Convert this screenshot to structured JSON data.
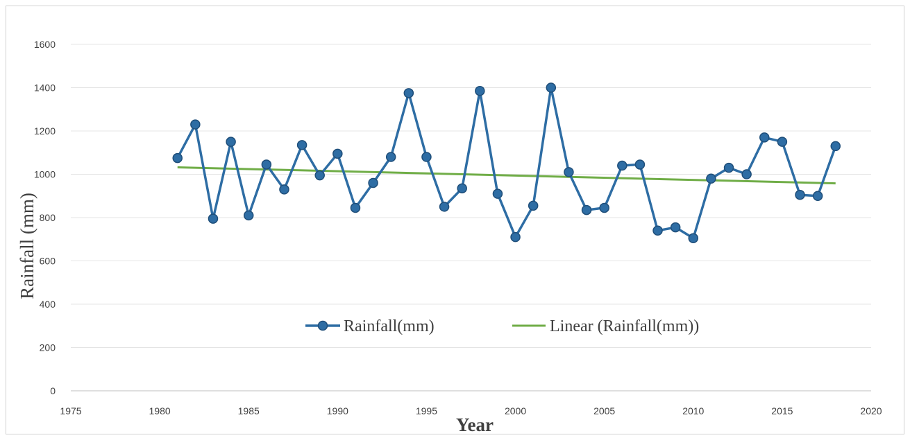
{
  "chart_data": {
    "type": "line",
    "title": "",
    "xlabel": "Year",
    "ylabel": "Rainfall (mm)",
    "xlim": [
      1975,
      2020
    ],
    "ylim": [
      0,
      1600
    ],
    "xticks": [
      1975,
      1980,
      1985,
      1990,
      1995,
      2000,
      2005,
      2010,
      2015,
      2020
    ],
    "yticks": [
      0,
      200,
      400,
      600,
      800,
      1000,
      1200,
      1400,
      1600
    ],
    "grid": "horizontal",
    "legend_position": "center",
    "series": [
      {
        "name": "Rainfall(mm)",
        "color": "#2e6da4",
        "marker": "circle",
        "x": [
          1981,
          1982,
          1983,
          1984,
          1985,
          1986,
          1987,
          1988,
          1989,
          1990,
          1991,
          1992,
          1993,
          1994,
          1995,
          1996,
          1997,
          1998,
          1999,
          2000,
          2001,
          2002,
          2003,
          2004,
          2005,
          2006,
          2007,
          2008,
          2009,
          2010,
          2011,
          2012,
          2013,
          2014,
          2015,
          2016,
          2017,
          2018
        ],
        "y": [
          1075,
          1230,
          795,
          1150,
          810,
          1045,
          930,
          1135,
          995,
          1095,
          845,
          960,
          1080,
          1375,
          1080,
          850,
          935,
          1385,
          910,
          710,
          855,
          1400,
          1010,
          835,
          845,
          1040,
          1045,
          740,
          755,
          705,
          980,
          1030,
          1000,
          1170,
          1150,
          905,
          900,
          1130
        ]
      },
      {
        "name": "Linear (Rainfall(mm))",
        "color": "#70ad47",
        "marker": "none",
        "x": [
          1981,
          2018
        ],
        "y": [
          1032,
          958
        ]
      }
    ]
  }
}
